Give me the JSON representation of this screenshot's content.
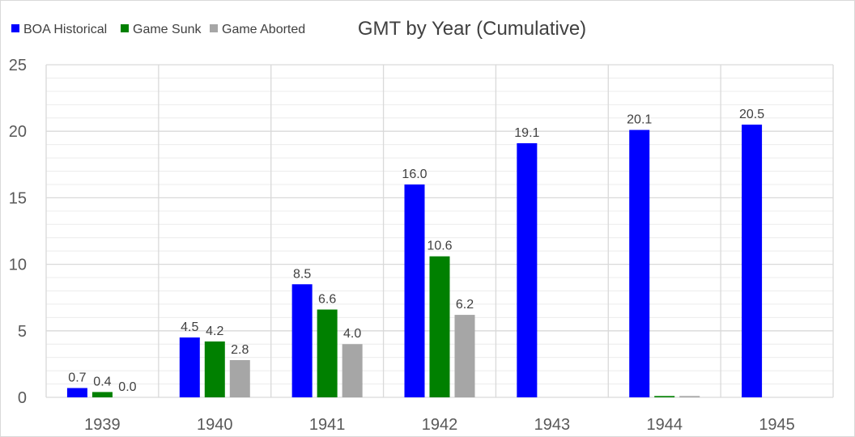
{
  "chart_data": {
    "type": "bar",
    "title": "GMT by Year (Cumulative)",
    "xlabel": "",
    "ylabel": "",
    "categories": [
      "1939",
      "1940",
      "1941",
      "1942",
      "1943",
      "1944",
      "1945"
    ],
    "ylim": [
      0,
      25
    ],
    "yticks": [
      "0",
      "5",
      "10",
      "15",
      "20",
      "25"
    ],
    "grid": true,
    "legend_position": "top-left",
    "series": [
      {
        "name": "BOA Historical",
        "color": "#0000ff",
        "values": [
          0.7,
          4.5,
          8.5,
          16.0,
          19.1,
          20.1,
          20.5
        ],
        "labels": [
          "0.7",
          "4.5",
          "8.5",
          "16.0",
          "19.1",
          "20.1",
          "20.5"
        ]
      },
      {
        "name": "Game Sunk",
        "color": "#008000",
        "values": [
          0.4,
          4.2,
          6.6,
          10.6,
          null,
          0.1,
          null
        ],
        "labels": [
          "0.4",
          "4.2",
          "6.6",
          "10.6",
          "",
          "",
          ""
        ]
      },
      {
        "name": "Game Aborted",
        "color": "#a6a6a6",
        "values": [
          0.0,
          2.8,
          4.0,
          6.2,
          null,
          0.1,
          null
        ],
        "labels": [
          "0.0",
          "2.8",
          "4.0",
          "6.2",
          "",
          "",
          ""
        ]
      }
    ]
  }
}
